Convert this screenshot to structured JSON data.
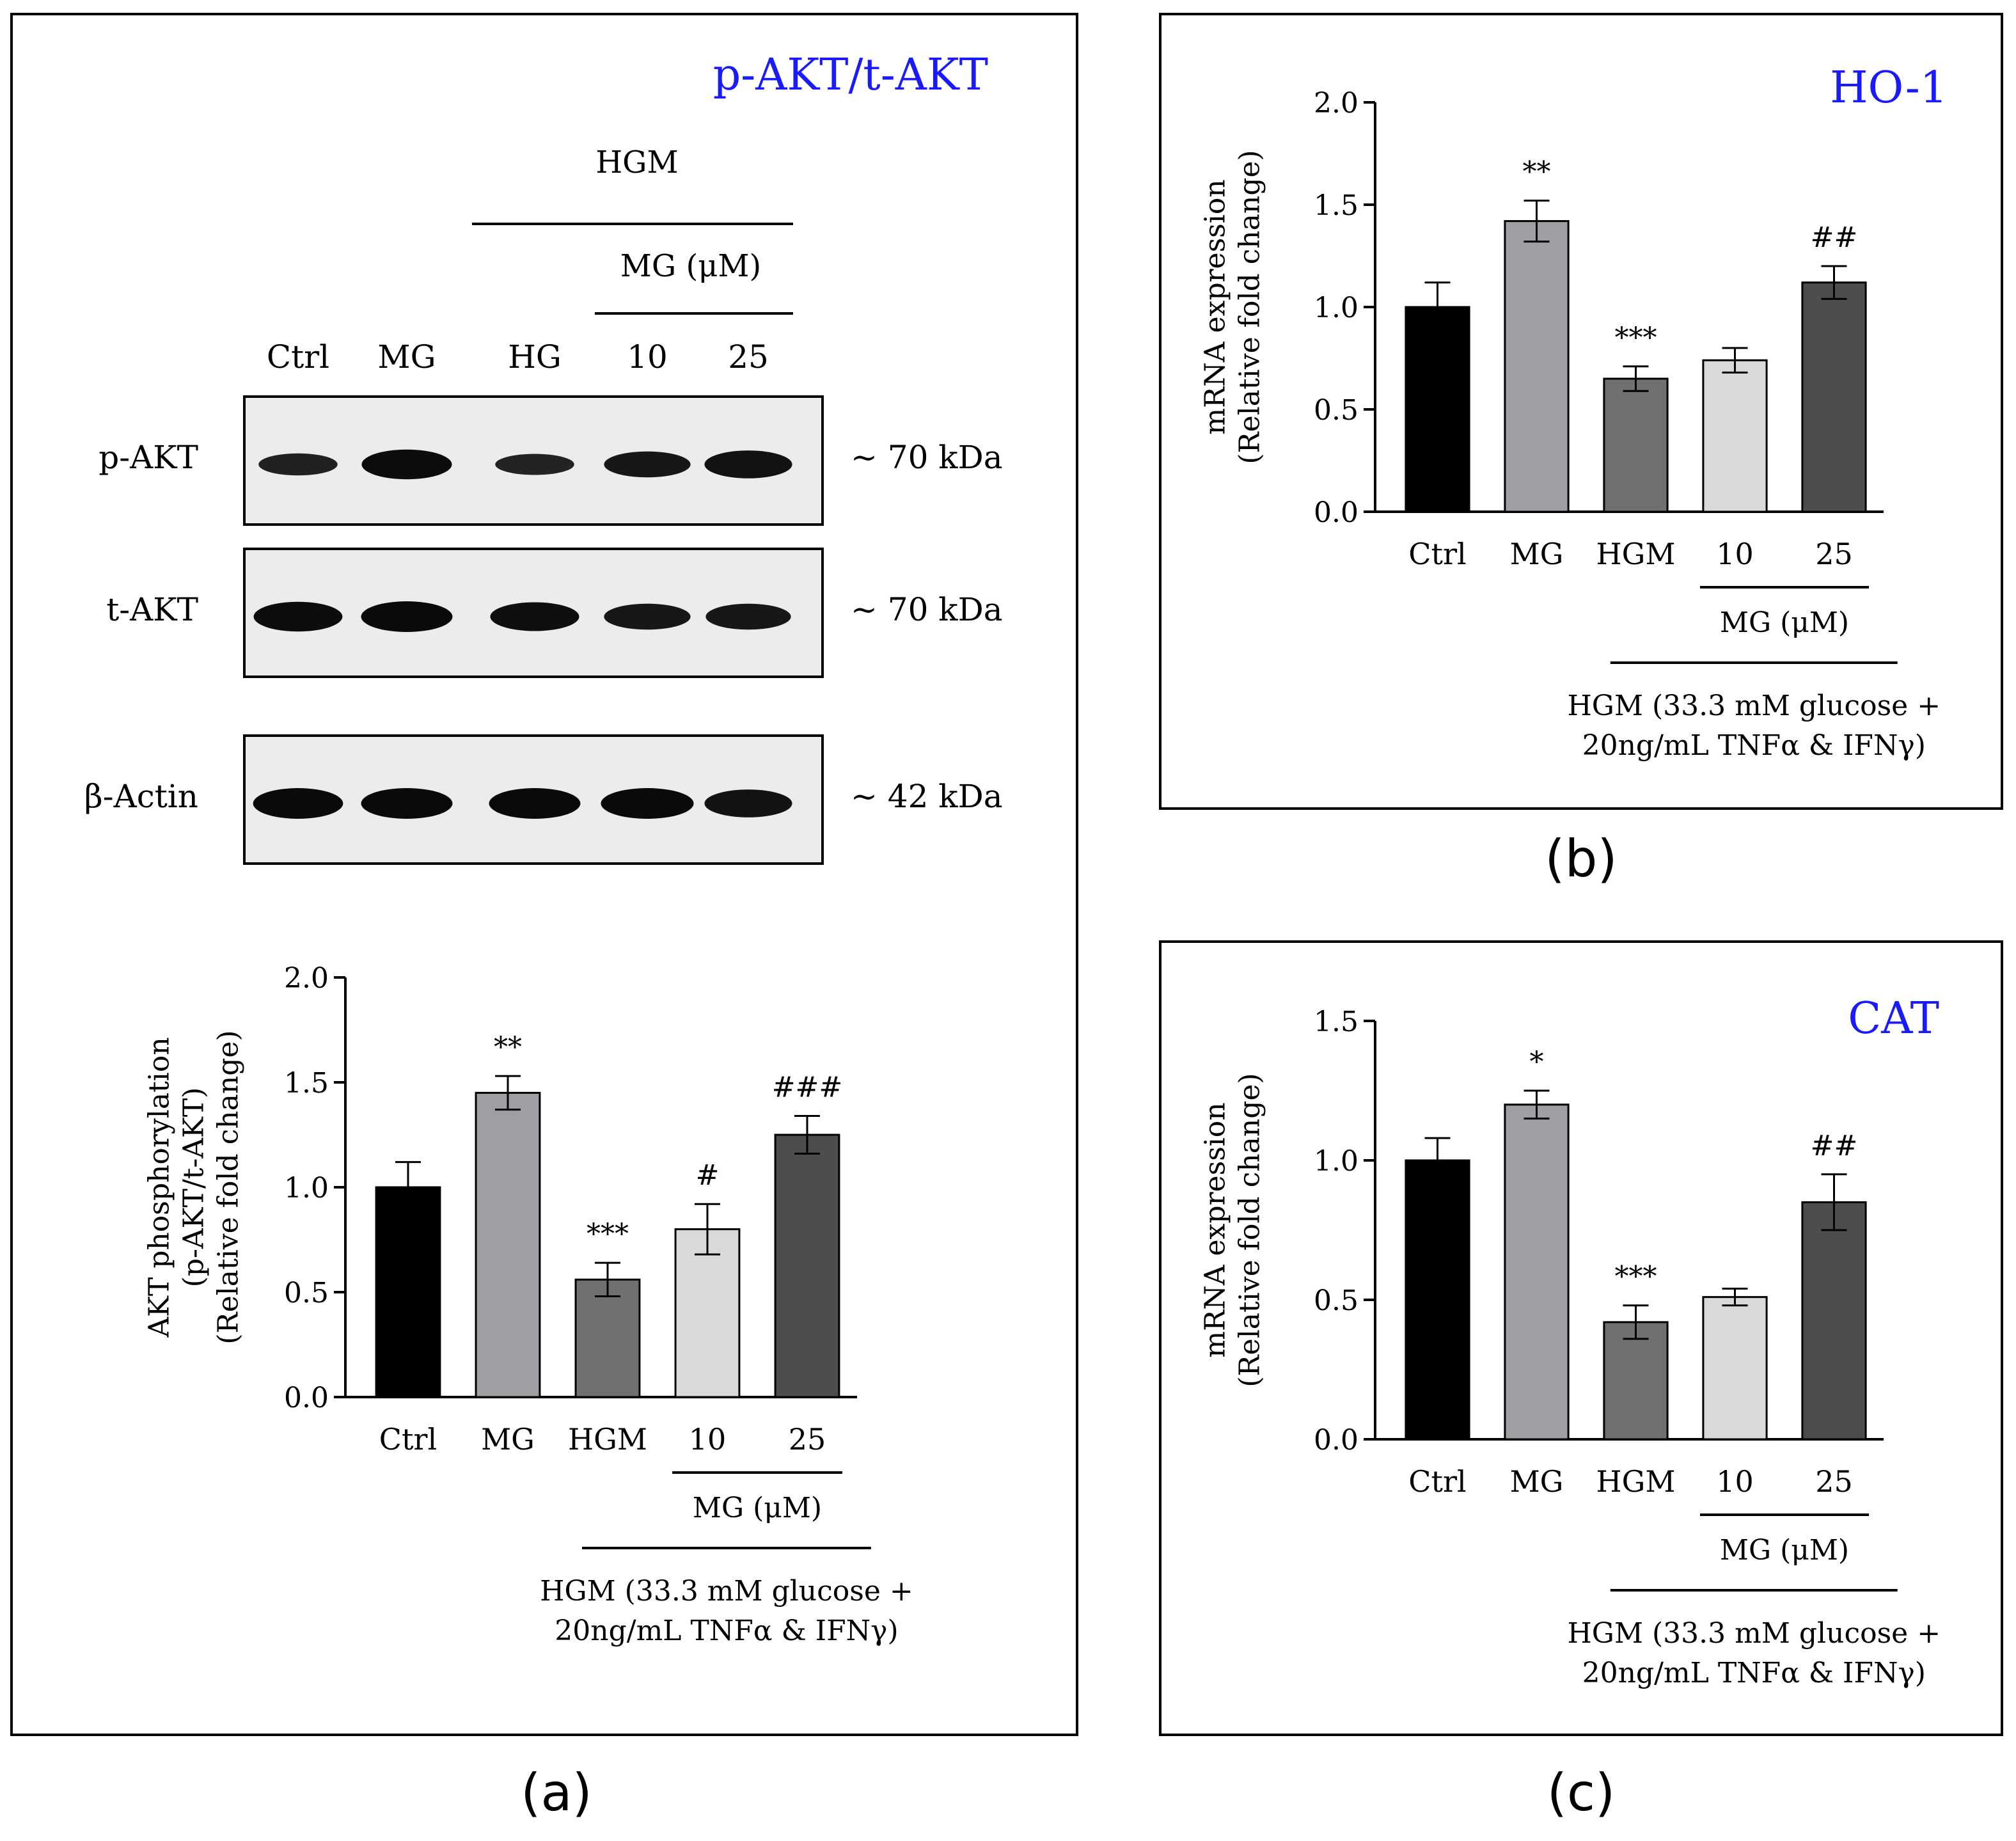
{
  "panels": {
    "a": {
      "letter": "(a)",
      "title": "p-AKT/t-AKT",
      "blot": {
        "group_top": "HGM",
        "group_sub": "MG (μM)",
        "lanes": [
          "Ctrl",
          "MG",
          "HG",
          "10",
          "25"
        ],
        "rows": [
          {
            "label": "p-AKT",
            "mw": "~ 70 kDa",
            "intensities": [
              0.55,
              0.95,
              0.5,
              0.75,
              0.85
            ]
          },
          {
            "label": "t-AKT",
            "mw": "~ 70 kDa",
            "intensities": [
              0.95,
              1.0,
              0.9,
              0.75,
              0.75
            ]
          },
          {
            "label": "β-Actin",
            "mw": "~ 42 kDa",
            "intensities": [
              1.0,
              1.0,
              1.0,
              1.0,
              0.85
            ]
          }
        ]
      }
    },
    "b": {
      "letter": "(b)",
      "title": "HO-1"
    },
    "c": {
      "letter": "(c)",
      "title": "CAT"
    }
  },
  "chart_data": [
    {
      "panel": "a",
      "type": "bar",
      "categories": [
        "Ctrl",
        "MG",
        "HGM",
        "10",
        "25"
      ],
      "values": [
        1.0,
        1.45,
        0.56,
        0.8,
        1.25
      ],
      "errors": [
        0.12,
        0.08,
        0.08,
        0.12,
        0.09
      ],
      "annotations": [
        "",
        "**",
        "***",
        "#",
        "###"
      ],
      "ylabel_lines": [
        "AKT phosphorylation",
        "(p-AKT/t-AKT)",
        "(Relative fold change)"
      ],
      "ylim": [
        0,
        2.0
      ],
      "yticks": [
        "0.0",
        "0.5",
        "1.0",
        "1.5",
        "2.0"
      ],
      "bar_colors": [
        "#000000",
        "#9e9ea3",
        "#707070",
        "#d9d9d9",
        "#4d4d4d"
      ],
      "group_sub": "MG (μM)",
      "group_main_lines": [
        "HGM (33.3 mM glucose +",
        "20ng/mL TNFα & IFNγ)"
      ]
    },
    {
      "panel": "b",
      "type": "bar",
      "title": "HO-1",
      "categories": [
        "Ctrl",
        "MG",
        "HGM",
        "10",
        "25"
      ],
      "values": [
        1.0,
        1.42,
        0.65,
        0.74,
        1.12
      ],
      "errors": [
        0.12,
        0.1,
        0.06,
        0.06,
        0.08
      ],
      "annotations": [
        "",
        "**",
        "***",
        "",
        "##"
      ],
      "ylabel_lines": [
        "mRNA expression",
        "(Relative fold change)"
      ],
      "ylim": [
        0,
        2.0
      ],
      "yticks": [
        "0.0",
        "0.5",
        "1.0",
        "1.5",
        "2.0"
      ],
      "bar_colors": [
        "#000000",
        "#9e9ea3",
        "#707070",
        "#d9d9d9",
        "#4d4d4d"
      ],
      "group_sub": "MG (μM)",
      "group_main_lines": [
        "HGM (33.3 mM glucose +",
        "20ng/mL TNFα & IFNγ)"
      ]
    },
    {
      "panel": "c",
      "type": "bar",
      "title": "CAT",
      "categories": [
        "Ctrl",
        "MG",
        "HGM",
        "10",
        "25"
      ],
      "values": [
        1.0,
        1.2,
        0.42,
        0.51,
        0.85
      ],
      "errors": [
        0.08,
        0.05,
        0.06,
        0.03,
        0.1
      ],
      "annotations": [
        "",
        "*",
        "***",
        "",
        "##"
      ],
      "ylabel_lines": [
        "mRNA expression",
        "(Relative fold change)"
      ],
      "ylim": [
        0,
        1.5
      ],
      "yticks": [
        "0.0",
        "0.5",
        "1.0",
        "1.5"
      ],
      "bar_colors": [
        "#000000",
        "#9e9ea3",
        "#707070",
        "#d9d9d9",
        "#4d4d4d"
      ],
      "group_sub": "MG (μM)",
      "group_main_lines": [
        "HGM (33.3 mM glucose +",
        "20ng/mL TNFα & IFNγ)"
      ]
    }
  ]
}
